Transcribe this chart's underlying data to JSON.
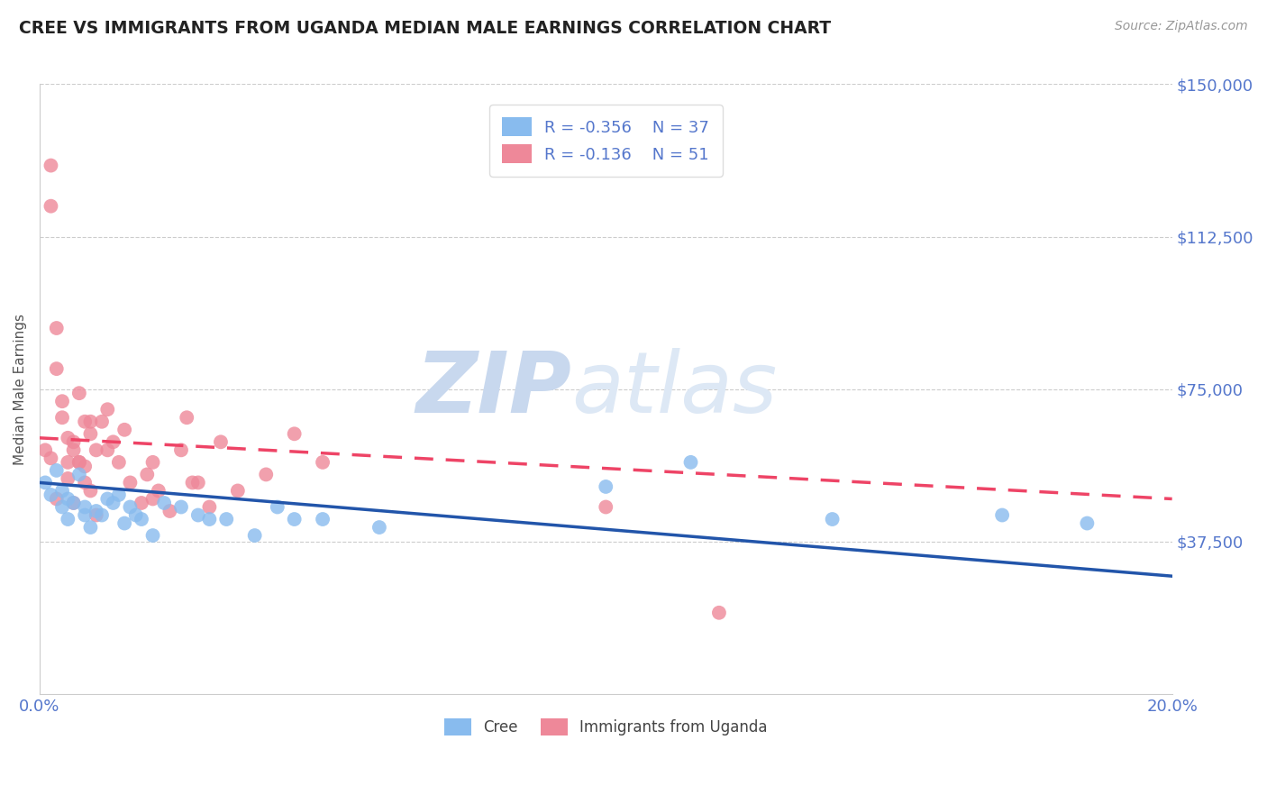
{
  "title": "CREE VS IMMIGRANTS FROM UGANDA MEDIAN MALE EARNINGS CORRELATION CHART",
  "source": "Source: ZipAtlas.com",
  "ylabel": "Median Male Earnings",
  "xmin": 0.0,
  "xmax": 0.2,
  "ymin": 0,
  "ymax": 150000,
  "yticks": [
    0,
    37500,
    75000,
    112500,
    150000
  ],
  "ytick_labels": [
    "",
    "$37,500",
    "$75,000",
    "$112,500",
    "$150,000"
  ],
  "xticks": [
    0.0,
    0.05,
    0.1,
    0.15,
    0.2
  ],
  "xtick_labels": [
    "0.0%",
    "",
    "",
    "",
    "20.0%"
  ],
  "grid_color": "#cccccc",
  "axis_color": "#5577cc",
  "background_color": "#ffffff",
  "watermark_zip": "ZIP",
  "watermark_atlas": "atlas",
  "watermark_color": "#c8d8ee",
  "legend_R1": "R = -0.356",
  "legend_N1": "N = 37",
  "legend_R2": "R = -0.136",
  "legend_N2": "N = 51",
  "cree_color": "#88bbee",
  "uganda_color": "#ee8899",
  "cree_line_color": "#2255aa",
  "uganda_line_color": "#ee4466",
  "cree_x": [
    0.001,
    0.002,
    0.003,
    0.004,
    0.004,
    0.005,
    0.005,
    0.006,
    0.007,
    0.008,
    0.008,
    0.009,
    0.01,
    0.011,
    0.012,
    0.013,
    0.014,
    0.015,
    0.016,
    0.017,
    0.018,
    0.02,
    0.022,
    0.025,
    0.028,
    0.03,
    0.033,
    0.038,
    0.042,
    0.045,
    0.05,
    0.06,
    0.1,
    0.115,
    0.14,
    0.17,
    0.185
  ],
  "cree_y": [
    52000,
    49000,
    55000,
    46000,
    50000,
    48000,
    43000,
    47000,
    54000,
    44000,
    46000,
    41000,
    45000,
    44000,
    48000,
    47000,
    49000,
    42000,
    46000,
    44000,
    43000,
    39000,
    47000,
    46000,
    44000,
    43000,
    43000,
    39000,
    46000,
    43000,
    43000,
    41000,
    51000,
    57000,
    43000,
    44000,
    42000
  ],
  "uganda_x": [
    0.001,
    0.002,
    0.002,
    0.003,
    0.003,
    0.004,
    0.004,
    0.005,
    0.005,
    0.005,
    0.006,
    0.006,
    0.007,
    0.007,
    0.008,
    0.008,
    0.009,
    0.009,
    0.01,
    0.01,
    0.011,
    0.012,
    0.013,
    0.014,
    0.015,
    0.016,
    0.018,
    0.019,
    0.02,
    0.021,
    0.023,
    0.025,
    0.026,
    0.027,
    0.03,
    0.032,
    0.035,
    0.04,
    0.045,
    0.05,
    0.002,
    0.003,
    0.006,
    0.008,
    0.012,
    0.02,
    0.028,
    0.009,
    0.007,
    0.1,
    0.12
  ],
  "uganda_y": [
    60000,
    130000,
    120000,
    90000,
    80000,
    72000,
    68000,
    57000,
    53000,
    63000,
    62000,
    47000,
    57000,
    74000,
    67000,
    52000,
    64000,
    50000,
    60000,
    44000,
    67000,
    70000,
    62000,
    57000,
    65000,
    52000,
    47000,
    54000,
    57000,
    50000,
    45000,
    60000,
    68000,
    52000,
    46000,
    62000,
    50000,
    54000,
    64000,
    57000,
    58000,
    48000,
    60000,
    56000,
    60000,
    48000,
    52000,
    67000,
    57000,
    46000,
    20000
  ],
  "cree_trend_x": [
    0.0,
    0.2
  ],
  "cree_trend_y": [
    52000,
    29000
  ],
  "uganda_trend_x": [
    0.0,
    0.2
  ],
  "uganda_trend_y": [
    63000,
    48000
  ]
}
